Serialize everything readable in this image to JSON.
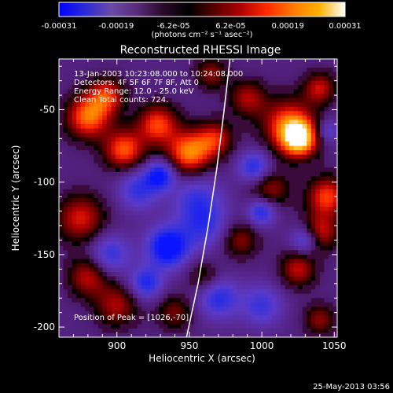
{
  "colorbar": {
    "stops": [
      "#0000ff",
      "#2a2ad8",
      "#6a4aa8",
      "#5a2a7a",
      "#2a0a2a",
      "#000000",
      "#5a0000",
      "#b00000",
      "#ff2a00",
      "#ff7a00",
      "#ffb000",
      "#ffffff"
    ],
    "ticks": [
      "-0.00031",
      "-0.00019",
      "-6.2e-05",
      "6.2e-05",
      "0.00019",
      "0.00031"
    ],
    "unit_label": "(photons cm⁻² s⁻¹ asec⁻²)"
  },
  "chart_data": {
    "type": "heatmap",
    "title": "Reconstructed RHESSI Image",
    "xlabel": "Heliocentric X (arcsec)",
    "ylabel": "Heliocentric Y (arcsec)",
    "xlim": [
      860,
      1052
    ],
    "ylim": [
      -207,
      -15
    ],
    "x_ticks": [
      900,
      950,
      1000,
      1050
    ],
    "y_ticks": [
      -50,
      -100,
      -150,
      -200
    ],
    "value_range": [
      -0.00031,
      0.00031
    ],
    "annotations": [
      "13-Jan-2003 10:23:08.000 to 10:24:08.000",
      "Detectors: 4F 5F 6F 7F 8F, Att 0",
      "Energy Range: 12.0 - 25.0 keV",
      "Clean    Total counts: 724."
    ],
    "peak_label": "Position of Peak = [1026,-70]",
    "peak": [
      1026,
      -70
    ],
    "limb_curve": [
      [
        948,
        -207
      ],
      [
        956,
        -170
      ],
      [
        963,
        -130
      ],
      [
        969,
        -90
      ],
      [
        974,
        -50
      ],
      [
        978,
        -15
      ]
    ],
    "blobs": [
      {
        "x": 1026,
        "y": -70,
        "v": 1.0,
        "s": 9
      },
      {
        "x": 1018,
        "y": -60,
        "v": 0.7,
        "s": 13
      },
      {
        "x": 880,
        "y": -55,
        "v": 0.8,
        "s": 11
      },
      {
        "x": 893,
        "y": -40,
        "v": 0.6,
        "s": 9
      },
      {
        "x": 905,
        "y": -78,
        "v": 0.75,
        "s": 10
      },
      {
        "x": 928,
        "y": -60,
        "v": 0.7,
        "s": 10
      },
      {
        "x": 950,
        "y": -80,
        "v": 0.85,
        "s": 11
      },
      {
        "x": 968,
        "y": -70,
        "v": 0.55,
        "s": 9
      },
      {
        "x": 990,
        "y": -42,
        "v": 0.5,
        "s": 9
      },
      {
        "x": 965,
        "y": -25,
        "v": 0.45,
        "s": 8
      },
      {
        "x": 1045,
        "y": -110,
        "v": 0.7,
        "s": 10
      },
      {
        "x": 1040,
        "y": -135,
        "v": 0.6,
        "s": 9
      },
      {
        "x": 1005,
        "y": -105,
        "v": 0.5,
        "s": 10
      },
      {
        "x": 985,
        "y": -140,
        "v": 0.45,
        "s": 9
      },
      {
        "x": 1025,
        "y": -160,
        "v": 0.55,
        "s": 9
      },
      {
        "x": 1040,
        "y": -195,
        "v": 0.45,
        "s": 8
      },
      {
        "x": 875,
        "y": -125,
        "v": 0.6,
        "s": 12
      },
      {
        "x": 880,
        "y": -165,
        "v": 0.55,
        "s": 10
      },
      {
        "x": 900,
        "y": -185,
        "v": 0.5,
        "s": 11
      },
      {
        "x": 940,
        "y": -190,
        "v": 0.4,
        "s": 9
      },
      {
        "x": 960,
        "y": -165,
        "v": 0.35,
        "s": 8
      },
      {
        "x": 915,
        "y": -105,
        "v": -0.5,
        "s": 10
      },
      {
        "x": 935,
        "y": -145,
        "v": -0.85,
        "s": 10
      },
      {
        "x": 930,
        "y": -95,
        "v": -0.7,
        "s": 7
      },
      {
        "x": 995,
        "y": -90,
        "v": -0.6,
        "s": 8
      },
      {
        "x": 1000,
        "y": -120,
        "v": -0.65,
        "s": 7
      },
      {
        "x": 960,
        "y": -130,
        "v": -0.45,
        "s": 12
      },
      {
        "x": 970,
        "y": -180,
        "v": -0.55,
        "s": 10
      },
      {
        "x": 1000,
        "y": -185,
        "v": -0.45,
        "s": 10
      },
      {
        "x": 1030,
        "y": -140,
        "v": -0.55,
        "s": 7
      },
      {
        "x": 895,
        "y": -150,
        "v": -0.5,
        "s": 10
      },
      {
        "x": 920,
        "y": -170,
        "v": -0.6,
        "s": 8
      },
      {
        "x": 955,
        "y": -110,
        "v": -0.4,
        "s": 12
      },
      {
        "x": 1045,
        "y": -65,
        "v": -0.4,
        "s": 6
      },
      {
        "x": 1040,
        "y": -35,
        "v": 0.55,
        "s": 8
      }
    ]
  },
  "footer": {
    "date": "25-May-2013 03:56"
  }
}
